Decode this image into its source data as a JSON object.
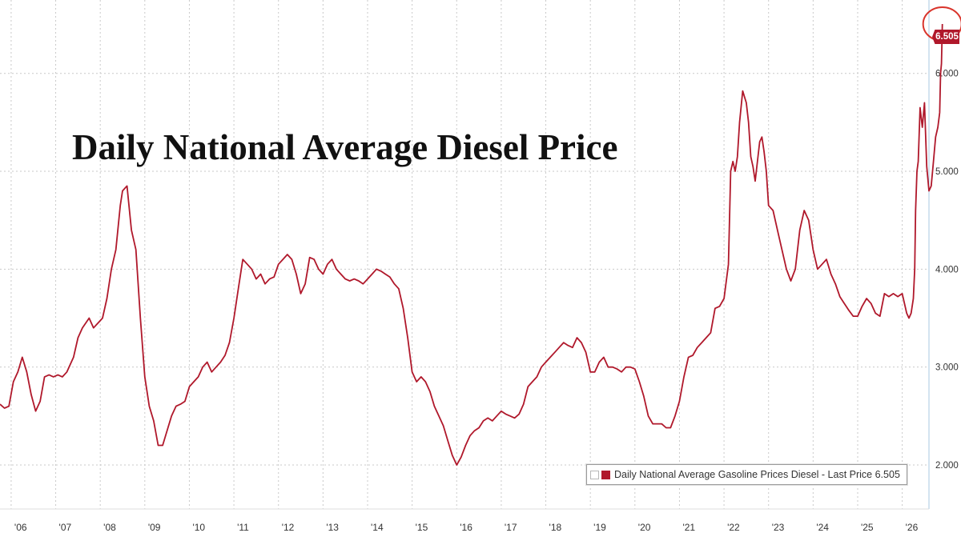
{
  "chart_data": {
    "type": "line",
    "title": "Daily National Average Diesel Price",
    "x_tick_labels": [
      "'06",
      "'07",
      "'08",
      "'09",
      "'10",
      "'11",
      "'12",
      "'13",
      "'14",
      "'15",
      "'16",
      "'17",
      "'18",
      "'19",
      "'20",
      "'21",
      "'22",
      "'23",
      "'24",
      "'25",
      "'26"
    ],
    "y_tick_labels": [
      "2.000",
      "3.000",
      "4.000",
      "5.000",
      "6.000"
    ],
    "y_ticks": [
      2,
      3,
      4,
      5,
      6
    ],
    "ylim": [
      1.55,
      6.75
    ],
    "xlim": [
      2005.75,
      2026.6
    ],
    "grid": true,
    "y_axis_side": "right",
    "legend_position": "bottom-right",
    "series": [
      {
        "name": "Daily National Average Gasoline Prices Diesel - Last Price 6.505",
        "color": "#b0182b",
        "points": [
          [
            2005.75,
            2.62
          ],
          [
            2005.85,
            2.58
          ],
          [
            2005.95,
            2.6
          ],
          [
            2006.05,
            2.85
          ],
          [
            2006.15,
            2.95
          ],
          [
            2006.25,
            3.1
          ],
          [
            2006.35,
            2.95
          ],
          [
            2006.45,
            2.72
          ],
          [
            2006.55,
            2.55
          ],
          [
            2006.65,
            2.65
          ],
          [
            2006.75,
            2.9
          ],
          [
            2006.85,
            2.92
          ],
          [
            2006.95,
            2.9
          ],
          [
            2007.05,
            2.92
          ],
          [
            2007.15,
            2.9
          ],
          [
            2007.25,
            2.95
          ],
          [
            2007.4,
            3.1
          ],
          [
            2007.5,
            3.3
          ],
          [
            2007.6,
            3.4
          ],
          [
            2007.75,
            3.5
          ],
          [
            2007.85,
            3.4
          ],
          [
            2007.95,
            3.45
          ],
          [
            2008.05,
            3.5
          ],
          [
            2008.15,
            3.7
          ],
          [
            2008.25,
            4.0
          ],
          [
            2008.35,
            4.2
          ],
          [
            2008.45,
            4.65
          ],
          [
            2008.5,
            4.8
          ],
          [
            2008.6,
            4.85
          ],
          [
            2008.7,
            4.4
          ],
          [
            2008.8,
            4.2
          ],
          [
            2008.9,
            3.5
          ],
          [
            2009.0,
            2.9
          ],
          [
            2009.1,
            2.6
          ],
          [
            2009.2,
            2.45
          ],
          [
            2009.3,
            2.2
          ],
          [
            2009.4,
            2.2
          ],
          [
            2009.5,
            2.35
          ],
          [
            2009.6,
            2.5
          ],
          [
            2009.7,
            2.6
          ],
          [
            2009.8,
            2.62
          ],
          [
            2009.9,
            2.65
          ],
          [
            2010.0,
            2.8
          ],
          [
            2010.1,
            2.85
          ],
          [
            2010.2,
            2.9
          ],
          [
            2010.3,
            3.0
          ],
          [
            2010.4,
            3.05
          ],
          [
            2010.5,
            2.95
          ],
          [
            2010.6,
            3.0
          ],
          [
            2010.7,
            3.05
          ],
          [
            2010.8,
            3.12
          ],
          [
            2010.9,
            3.25
          ],
          [
            2011.0,
            3.5
          ],
          [
            2011.1,
            3.8
          ],
          [
            2011.2,
            4.1
          ],
          [
            2011.3,
            4.05
          ],
          [
            2011.4,
            4.0
          ],
          [
            2011.5,
            3.9
          ],
          [
            2011.6,
            3.95
          ],
          [
            2011.7,
            3.85
          ],
          [
            2011.8,
            3.9
          ],
          [
            2011.9,
            3.92
          ],
          [
            2012.0,
            4.05
          ],
          [
            2012.1,
            4.1
          ],
          [
            2012.2,
            4.15
          ],
          [
            2012.3,
            4.1
          ],
          [
            2012.4,
            3.95
          ],
          [
            2012.5,
            3.75
          ],
          [
            2012.6,
            3.85
          ],
          [
            2012.7,
            4.12
          ],
          [
            2012.8,
            4.1
          ],
          [
            2012.9,
            4.0
          ],
          [
            2013.0,
            3.95
          ],
          [
            2013.1,
            4.05
          ],
          [
            2013.2,
            4.1
          ],
          [
            2013.3,
            4.0
          ],
          [
            2013.4,
            3.95
          ],
          [
            2013.5,
            3.9
          ],
          [
            2013.6,
            3.88
          ],
          [
            2013.7,
            3.9
          ],
          [
            2013.8,
            3.88
          ],
          [
            2013.9,
            3.85
          ],
          [
            2014.0,
            3.9
          ],
          [
            2014.1,
            3.95
          ],
          [
            2014.2,
            4.0
          ],
          [
            2014.3,
            3.98
          ],
          [
            2014.4,
            3.95
          ],
          [
            2014.5,
            3.92
          ],
          [
            2014.6,
            3.85
          ],
          [
            2014.7,
            3.8
          ],
          [
            2014.8,
            3.6
          ],
          [
            2014.9,
            3.3
          ],
          [
            2015.0,
            2.95
          ],
          [
            2015.1,
            2.85
          ],
          [
            2015.2,
            2.9
          ],
          [
            2015.3,
            2.85
          ],
          [
            2015.4,
            2.75
          ],
          [
            2015.5,
            2.6
          ],
          [
            2015.6,
            2.5
          ],
          [
            2015.7,
            2.4
          ],
          [
            2015.8,
            2.25
          ],
          [
            2015.9,
            2.1
          ],
          [
            2016.0,
            2.0
          ],
          [
            2016.1,
            2.08
          ],
          [
            2016.2,
            2.2
          ],
          [
            2016.3,
            2.3
          ],
          [
            2016.4,
            2.35
          ],
          [
            2016.5,
            2.38
          ],
          [
            2016.6,
            2.45
          ],
          [
            2016.7,
            2.48
          ],
          [
            2016.8,
            2.45
          ],
          [
            2016.9,
            2.5
          ],
          [
            2017.0,
            2.55
          ],
          [
            2017.1,
            2.52
          ],
          [
            2017.2,
            2.5
          ],
          [
            2017.3,
            2.48
          ],
          [
            2017.4,
            2.52
          ],
          [
            2017.5,
            2.62
          ],
          [
            2017.6,
            2.8
          ],
          [
            2017.7,
            2.85
          ],
          [
            2017.8,
            2.9
          ],
          [
            2017.9,
            3.0
          ],
          [
            2018.0,
            3.05
          ],
          [
            2018.1,
            3.1
          ],
          [
            2018.2,
            3.15
          ],
          [
            2018.3,
            3.2
          ],
          [
            2018.4,
            3.25
          ],
          [
            2018.5,
            3.22
          ],
          [
            2018.6,
            3.2
          ],
          [
            2018.7,
            3.3
          ],
          [
            2018.8,
            3.25
          ],
          [
            2018.9,
            3.15
          ],
          [
            2019.0,
            2.95
          ],
          [
            2019.1,
            2.95
          ],
          [
            2019.2,
            3.05
          ],
          [
            2019.3,
            3.1
          ],
          [
            2019.4,
            3.0
          ],
          [
            2019.5,
            3.0
          ],
          [
            2019.6,
            2.98
          ],
          [
            2019.7,
            2.95
          ],
          [
            2019.8,
            3.0
          ],
          [
            2019.9,
            3.0
          ],
          [
            2020.0,
            2.98
          ],
          [
            2020.1,
            2.85
          ],
          [
            2020.2,
            2.7
          ],
          [
            2020.3,
            2.5
          ],
          [
            2020.4,
            2.42
          ],
          [
            2020.5,
            2.42
          ],
          [
            2020.6,
            2.42
          ],
          [
            2020.7,
            2.38
          ],
          [
            2020.8,
            2.38
          ],
          [
            2020.9,
            2.5
          ],
          [
            2021.0,
            2.65
          ],
          [
            2021.1,
            2.9
          ],
          [
            2021.2,
            3.1
          ],
          [
            2021.3,
            3.12
          ],
          [
            2021.4,
            3.2
          ],
          [
            2021.5,
            3.25
          ],
          [
            2021.6,
            3.3
          ],
          [
            2021.7,
            3.35
          ],
          [
            2021.8,
            3.6
          ],
          [
            2021.9,
            3.62
          ],
          [
            2022.0,
            3.7
          ],
          [
            2022.1,
            4.05
          ],
          [
            2022.15,
            5.0
          ],
          [
            2022.2,
            5.1
          ],
          [
            2022.25,
            5.0
          ],
          [
            2022.3,
            5.15
          ],
          [
            2022.35,
            5.5
          ],
          [
            2022.42,
            5.82
          ],
          [
            2022.5,
            5.7
          ],
          [
            2022.55,
            5.5
          ],
          [
            2022.6,
            5.15
          ],
          [
            2022.65,
            5.05
          ],
          [
            2022.7,
            4.9
          ],
          [
            2022.75,
            5.1
          ],
          [
            2022.8,
            5.3
          ],
          [
            2022.85,
            5.35
          ],
          [
            2022.9,
            5.2
          ],
          [
            2022.95,
            5.0
          ],
          [
            2023.0,
            4.65
          ],
          [
            2023.1,
            4.6
          ],
          [
            2023.2,
            4.4
          ],
          [
            2023.3,
            4.2
          ],
          [
            2023.4,
            4.0
          ],
          [
            2023.5,
            3.88
          ],
          [
            2023.6,
            4.0
          ],
          [
            2023.7,
            4.4
          ],
          [
            2023.8,
            4.6
          ],
          [
            2023.9,
            4.5
          ],
          [
            2024.0,
            4.2
          ],
          [
            2024.1,
            4.0
          ],
          [
            2024.2,
            4.05
          ],
          [
            2024.3,
            4.1
          ],
          [
            2024.4,
            3.95
          ],
          [
            2024.5,
            3.85
          ],
          [
            2024.6,
            3.72
          ],
          [
            2024.7,
            3.65
          ],
          [
            2024.8,
            3.58
          ],
          [
            2024.9,
            3.52
          ],
          [
            2025.0,
            3.52
          ],
          [
            2025.1,
            3.62
          ],
          [
            2025.2,
            3.7
          ],
          [
            2025.3,
            3.65
          ],
          [
            2025.4,
            3.55
          ],
          [
            2025.5,
            3.52
          ],
          [
            2025.6,
            3.75
          ],
          [
            2025.7,
            3.72
          ],
          [
            2025.8,
            3.75
          ],
          [
            2025.9,
            3.72
          ],
          [
            2026.0,
            3.75
          ],
          [
            2026.1,
            3.55
          ],
          [
            2026.15,
            3.5
          ],
          [
            2026.2,
            3.55
          ],
          [
            2026.25,
            3.7
          ],
          [
            2026.28,
            4.0
          ],
          [
            2026.3,
            4.6
          ],
          [
            2026.33,
            5.0
          ],
          [
            2026.36,
            5.1
          ],
          [
            2026.4,
            5.65
          ],
          [
            2026.45,
            5.45
          ],
          [
            2026.5,
            5.7
          ],
          [
            2026.55,
            5.05
          ],
          [
            2026.6,
            4.8
          ],
          [
            2026.65,
            4.85
          ],
          [
            2026.7,
            5.1
          ],
          [
            2026.75,
            5.35
          ],
          [
            2026.8,
            5.45
          ],
          [
            2026.84,
            5.6
          ],
          [
            2026.86,
            6.0
          ],
          [
            2026.88,
            6.1
          ],
          [
            2026.9,
            6.505
          ]
        ]
      }
    ],
    "last_price_label": "6.505",
    "highlighted_point": "6.505"
  }
}
